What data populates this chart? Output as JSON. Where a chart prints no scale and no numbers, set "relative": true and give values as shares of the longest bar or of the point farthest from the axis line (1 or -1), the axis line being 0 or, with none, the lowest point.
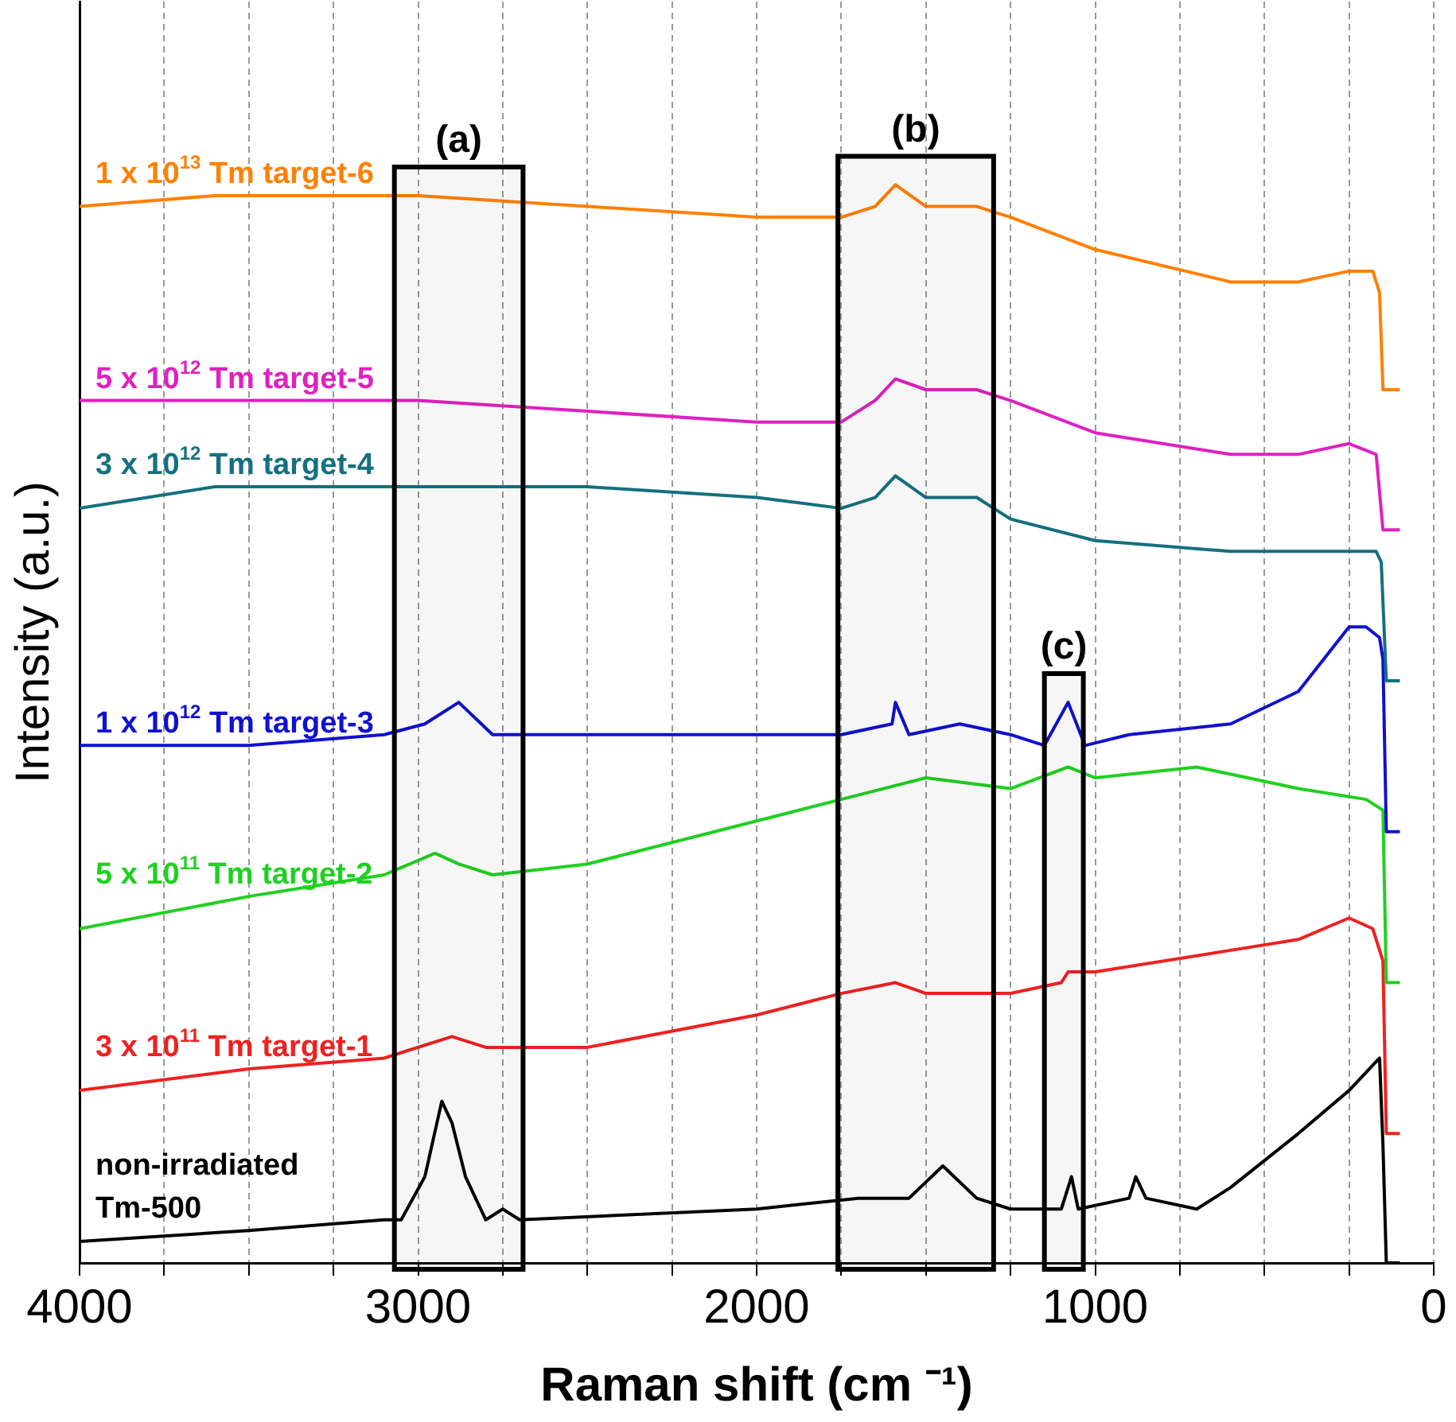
{
  "chart_data": {
    "type": "line",
    "relative": true,
    "xlabel": "Raman shift (cm ⁻¹)",
    "ylabel": "Intensity (a.u.)",
    "xlim": [
      4000,
      0
    ],
    "xticks": [
      4000,
      {
        "value": 3750,
        "label": null
      },
      {
        "value": 3500,
        "label": null
      },
      {
        "value": 3250,
        "label": null
      },
      3000,
      {
        "value": 2750,
        "label": null
      },
      {
        "value": 2500,
        "label": null
      },
      {
        "value": 2250,
        "label": null
      },
      2000,
      {
        "value": 1750,
        "label": null
      },
      {
        "value": 1500,
        "label": null
      },
      {
        "value": 1250,
        "label": null
      },
      1000,
      {
        "value": 750,
        "label": null
      },
      {
        "value": 500,
        "label": null
      },
      {
        "value": 250,
        "label": null
      },
      0
    ],
    "grid": "x",
    "line_style": "solid",
    "marker": "none",
    "bands": [
      {
        "axis": "x",
        "from": 3070,
        "to": 2690,
        "label": "(a)"
      },
      {
        "axis": "x",
        "from": 1760,
        "to": 1300,
        "label": "(b)"
      },
      {
        "axis": "x",
        "from": 1150,
        "to": 1035,
        "label": "(c)"
      }
    ],
    "series": [
      {
        "name": "1 x 10$^{13}$ Tm target-6",
        "color": "#ff8000",
        "x": [
          4000,
          3600,
          3000,
          2500,
          2000,
          1750,
          1650,
          1590,
          1500,
          1350,
          1250,
          1000,
          600,
          400,
          250,
          180,
          160,
          150,
          100
        ],
        "values": [
          0.98,
          0.99,
          0.99,
          0.98,
          0.97,
          0.97,
          0.98,
          1,
          0.98,
          0.98,
          0.97,
          0.94,
          0.91,
          0.91,
          0.92,
          0.92,
          0.9,
          0.81,
          0.81
        ]
      },
      {
        "name": "5 x 10$^{12}$ Tm target-5",
        "color": "#e020c0",
        "x": [
          4000,
          3000,
          2500,
          2000,
          1750,
          1650,
          1590,
          1500,
          1350,
          1250,
          1000,
          600,
          400,
          250,
          170,
          150,
          100
        ],
        "values": [
          0.8,
          0.8,
          0.79,
          0.78,
          0.78,
          0.8,
          0.82,
          0.81,
          0.81,
          0.8,
          0.77,
          0.75,
          0.75,
          0.76,
          0.75,
          0.68,
          0.68
        ]
      },
      {
        "name": "3 x 10$^{12}$ Tm target-4",
        "color": "#14707f",
        "x": [
          4000,
          3600,
          3000,
          2500,
          2000,
          1750,
          1650,
          1590,
          1500,
          1350,
          1250,
          1000,
          600,
          400,
          250,
          170,
          155,
          140,
          100
        ],
        "values": [
          0.7,
          0.72,
          0.72,
          0.72,
          0.71,
          0.7,
          0.71,
          0.73,
          0.71,
          0.71,
          0.69,
          0.67,
          0.66,
          0.66,
          0.66,
          0.66,
          0.65,
          0.54,
          0.54
        ]
      },
      {
        "name": "1 x 10$^{12}$ Tm target-3",
        "color": "#1010d0",
        "x": [
          4000,
          3500,
          3100,
          2980,
          2880,
          2780,
          2500,
          2000,
          1750,
          1600,
          1590,
          1550,
          1400,
          1250,
          1150,
          1080,
          1030,
          900,
          600,
          400,
          250,
          200,
          160,
          150,
          140,
          100
        ],
        "values": [
          0.48,
          0.48,
          0.49,
          0.5,
          0.52,
          0.49,
          0.49,
          0.49,
          0.49,
          0.5,
          0.52,
          0.49,
          0.5,
          0.49,
          0.48,
          0.52,
          0.48,
          0.49,
          0.5,
          0.53,
          0.59,
          0.59,
          0.58,
          0.56,
          0.4,
          0.4
        ]
      },
      {
        "name": "5 x 10$^{11}$ Tm target-2",
        "color": "#20d020",
        "x": [
          4000,
          3500,
          3100,
          2950,
          2880,
          2780,
          2500,
          2000,
          1750,
          1500,
          1250,
          1080,
          1000,
          700,
          400,
          200,
          150,
          140,
          100
        ],
        "values": [
          0.31,
          0.34,
          0.36,
          0.38,
          0.37,
          0.36,
          0.37,
          0.41,
          0.43,
          0.45,
          0.44,
          0.46,
          0.45,
          0.46,
          0.44,
          0.43,
          0.42,
          0.26,
          0.26
        ]
      },
      {
        "name": "3 x 10$^{11}$ Tm target-1",
        "color": "#f02020",
        "x": [
          4000,
          3500,
          3100,
          2900,
          2800,
          2500,
          2000,
          1750,
          1590,
          1500,
          1250,
          1100,
          1080,
          1000,
          600,
          400,
          250,
          180,
          150,
          140,
          100
        ],
        "values": [
          0.16,
          0.18,
          0.19,
          0.21,
          0.2,
          0.2,
          0.23,
          0.25,
          0.26,
          0.25,
          0.25,
          0.26,
          0.27,
          0.27,
          0.29,
          0.3,
          0.32,
          0.31,
          0.28,
          0.12,
          0.12
        ]
      },
      {
        "name": "non-irradiated Tm-500",
        "color": "#000000",
        "x": [
          4000,
          3500,
          3100,
          3050,
          2980,
          2930,
          2900,
          2860,
          2800,
          2750,
          2700,
          2000,
          1700,
          1550,
          1450,
          1350,
          1250,
          1100,
          1070,
          1050,
          900,
          880,
          850,
          700,
          600,
          400,
          250,
          160,
          150,
          140,
          100
        ],
        "values": [
          0.02,
          0.03,
          0.04,
          0.04,
          0.08,
          0.15,
          0.13,
          0.08,
          0.04,
          0.05,
          0.04,
          0.05,
          0.06,
          0.06,
          0.09,
          0.06,
          0.05,
          0.05,
          0.08,
          0.05,
          0.06,
          0.08,
          0.06,
          0.05,
          0.07,
          0.12,
          0.16,
          0.19,
          0.11,
          0,
          0
        ]
      }
    ]
  }
}
